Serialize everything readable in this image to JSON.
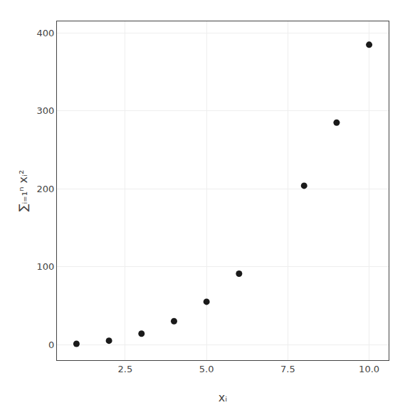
{
  "chart_data": {
    "type": "scatter",
    "xlabel": "xᵢ",
    "ylabel": "∑ᵢ₌₁ⁿ xᵢ²",
    "x": [
      1,
      2,
      3,
      4,
      5,
      6,
      8,
      9,
      10
    ],
    "values": [
      1,
      5,
      14,
      30,
      55,
      91,
      204,
      285,
      385
    ],
    "color": "#1a1a1a",
    "marker": "circle",
    "xlim": [
      0.4,
      10.6
    ],
    "ylim": [
      -20,
      415
    ],
    "xticks": [
      2.5,
      {
        "value": 5,
        "label": "5.0"
      },
      7.5,
      {
        "value": 10,
        "label": "10.0"
      }
    ],
    "yticks": [
      0,
      100,
      200,
      300,
      400
    ],
    "grid": true
  }
}
